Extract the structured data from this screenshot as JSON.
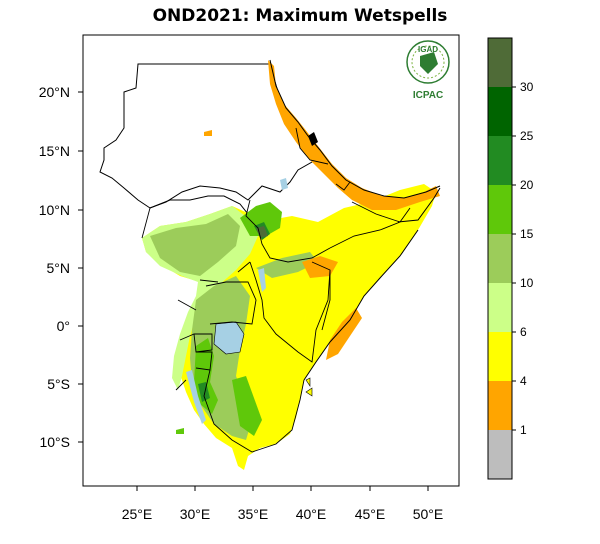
{
  "title": "OND2021: Maximum Wetspells",
  "logo": {
    "top_text": "IGAD",
    "bottom_text": "ICPAC"
  },
  "map": {
    "lon_ticks": [
      "25°E",
      "30°E",
      "35°E",
      "40°E",
      "45°E",
      "50°E"
    ],
    "lat_ticks": [
      "20°N",
      "15°N",
      "10°N",
      "5°N",
      "0°",
      "5°S",
      "10°S"
    ]
  },
  "colorbar": {
    "labels": [
      "30",
      "25",
      "20",
      "15",
      "10",
      "6",
      "4",
      "1"
    ],
    "colors_top_to_bottom": [
      "#4f6b37",
      "#006400",
      "#228b22",
      "#5fc80a",
      "#9ccc5a",
      "#ccff88",
      "#ffff00",
      "#ffa500",
      "#bdbdbd"
    ]
  },
  "palette": {
    "land_dry": "#ffffff",
    "lake": "#a6d0e4",
    "border": "#000000"
  }
}
